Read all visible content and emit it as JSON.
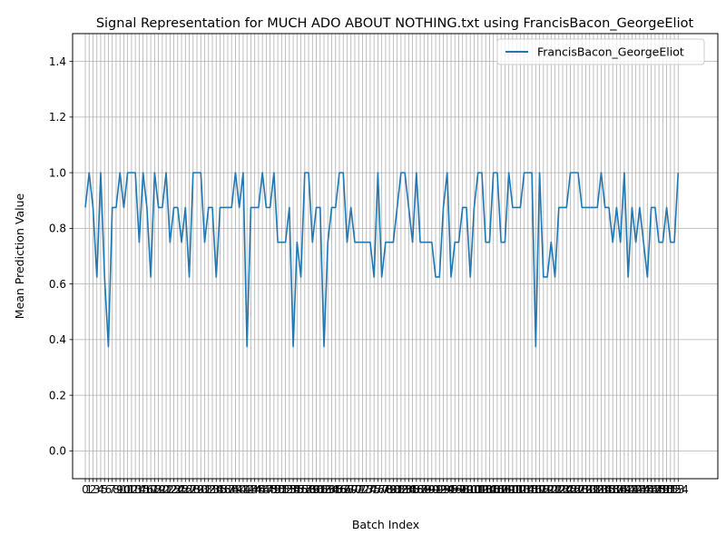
{
  "chart_data": {
    "type": "line",
    "title": "Signal Representation for MUCH ADO ABOUT NOTHING.txt using FrancisBacon_GeorgeEliot",
    "xlabel": "Batch Index",
    "ylabel": "Mean Prediction Value",
    "xlim": [
      -3.3,
      164.3
    ],
    "ylim": [
      -0.1,
      1.5
    ],
    "yticks": [
      0.0,
      0.2,
      0.4,
      0.6,
      0.8,
      1.0,
      1.2,
      1.4
    ],
    "ytick_labels": [
      "0.0",
      "0.2",
      "0.4",
      "0.6",
      "0.8",
      "1.0",
      "1.2",
      "1.4"
    ],
    "grid": true,
    "legend_position": "upper right",
    "line_color": "#1f77b4",
    "series": [
      {
        "name": "FrancisBacon_GeorgeEliot",
        "values": [
          0.875,
          1.0,
          0.875,
          0.625,
          1.0,
          0.625,
          0.375,
          0.875,
          0.875,
          1.0,
          0.875,
          1.0,
          1.0,
          1.0,
          0.75,
          1.0,
          0.875,
          0.625,
          1.0,
          0.875,
          0.875,
          1.0,
          0.75,
          0.875,
          0.875,
          0.75,
          0.875,
          0.625,
          1.0,
          1.0,
          1.0,
          0.75,
          0.875,
          0.875,
          0.625,
          0.875,
          0.875,
          0.875,
          0.875,
          1.0,
          0.875,
          1.0,
          0.375,
          0.875,
          0.875,
          0.875,
          1.0,
          0.875,
          0.875,
          1.0,
          0.75,
          0.75,
          0.75,
          0.875,
          0.375,
          0.75,
          0.625,
          1.0,
          1.0,
          0.75,
          0.875,
          0.875,
          0.375,
          0.75,
          0.875,
          0.875,
          1.0,
          1.0,
          0.75,
          0.875,
          0.75,
          0.75,
          0.75,
          0.75,
          0.75,
          0.625,
          1.0,
          0.625,
          0.75,
          0.75,
          0.75,
          0.875,
          1.0,
          1.0,
          0.875,
          0.75,
          1.0,
          0.75,
          0.75,
          0.75,
          0.75,
          0.625,
          0.625,
          0.875,
          1.0,
          0.625,
          0.75,
          0.75,
          0.875,
          0.875,
          0.625,
          0.875,
          1.0,
          1.0,
          0.75,
          0.75,
          1.0,
          1.0,
          0.75,
          0.75,
          1.0,
          0.875,
          0.875,
          0.875,
          1.0,
          1.0,
          1.0,
          0.375,
          1.0,
          0.625,
          0.625,
          0.75,
          0.625,
          0.875,
          0.875,
          0.875,
          1.0,
          1.0,
          1.0,
          0.875,
          0.875,
          0.875,
          0.875,
          0.875,
          1.0,
          0.875,
          0.875,
          0.75,
          0.875,
          0.75,
          1.0,
          0.625,
          0.875,
          0.75,
          0.875,
          0.75,
          0.625,
          0.875,
          0.875,
          0.75,
          0.75,
          0.875,
          0.75,
          0.75,
          1.0
        ]
      }
    ]
  }
}
